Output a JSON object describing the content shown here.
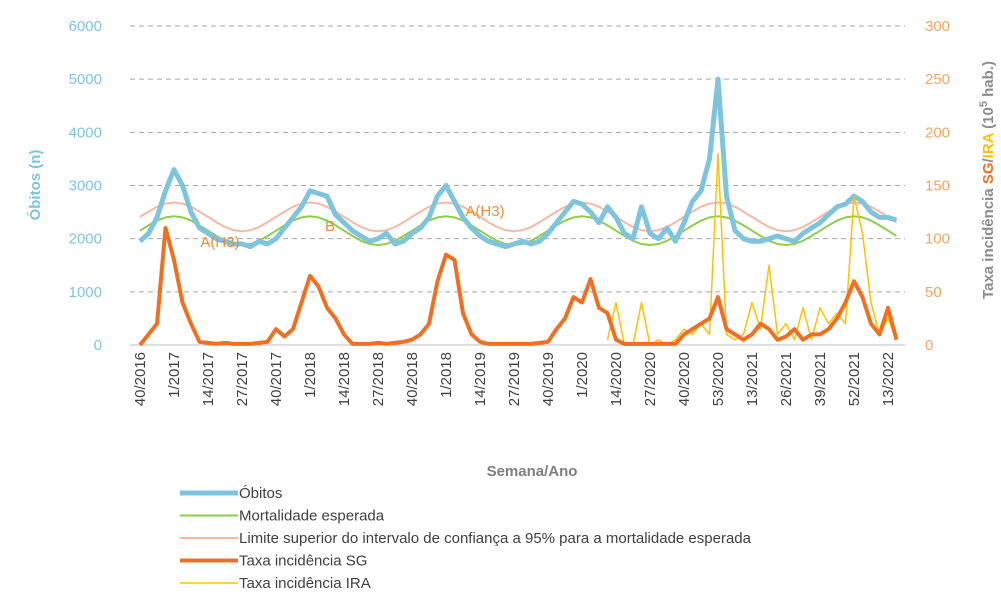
{
  "chart_data": {
    "type": "line",
    "x_label": "Semana/Ano",
    "y_label": "Óbitos (n)",
    "y2_label": [
      "Taxa incidência ",
      "SG",
      "/",
      "IRA",
      " (10",
      "5",
      " hab.)"
    ],
    "annotations": [
      "A(H3)",
      "B",
      "A(H3)"
    ],
    "categories": [
      "40/2016",
      null,
      null,
      null,
      "1/2017",
      null,
      null,
      null,
      "14/2017",
      null,
      null,
      null,
      "27/2017",
      null,
      null,
      null,
      "40/2017",
      null,
      null,
      null,
      "1/2018",
      null,
      null,
      null,
      "14/2018",
      null,
      null,
      null,
      "27/2018",
      null,
      null,
      null,
      "40/2018",
      null,
      null,
      null,
      "1/2018",
      null,
      null,
      null,
      "14/2019",
      null,
      null,
      null,
      "27/2019",
      null,
      null,
      null,
      "40/2019",
      null,
      null,
      null,
      "1/2020",
      null,
      null,
      null,
      "14/2020",
      null,
      null,
      null,
      "27/2020",
      null,
      null,
      null,
      "40/2020",
      null,
      null,
      null,
      "53/2020",
      null,
      null,
      null,
      "13/2021",
      null,
      null,
      null,
      "26/2021",
      null,
      null,
      null,
      "39/2021",
      null,
      null,
      null,
      "52/2021",
      null,
      null,
      null,
      "13/2022",
      null
    ],
    "ylim": [
      0,
      6000
    ],
    "yticks": [
      0,
      1000,
      2000,
      3000,
      4000,
      5000,
      6000
    ],
    "y2lim": [
      0,
      300
    ],
    "y2ticks": [
      0,
      50,
      100,
      150,
      200,
      250,
      300
    ],
    "grid": true,
    "series": [
      {
        "name": "Óbitos",
        "color": "#7fc4dd",
        "values": [
          1950,
          2100,
          2400,
          2900,
          3300,
          3000,
          2500,
          2200,
          2100,
          2000,
          1950,
          1900,
          1900,
          1850,
          1950,
          1900,
          2000,
          2200,
          2400,
          2600,
          2900,
          2850,
          2800,
          2450,
          2300,
          2150,
          2050,
          1950,
          2000,
          2100,
          1900,
          1950,
          2100,
          2200,
          2400,
          2800,
          3000,
          2700,
          2400,
          2200,
          2050,
          1950,
          1900,
          1850,
          1900,
          1950,
          1900,
          1950,
          2100,
          2300,
          2500,
          2700,
          2650,
          2500,
          2300,
          2600,
          2400,
          2100,
          2000,
          2600,
          2100,
          2000,
          2200,
          1950,
          2300,
          2700,
          2900,
          3500,
          5000,
          2800,
          2150,
          2000,
          1950,
          1950,
          2000,
          2050,
          2000,
          1950,
          2100,
          2200,
          2300,
          2450,
          2600,
          2650,
          2800,
          2700,
          2500,
          2400,
          2400,
          2350
        ]
      },
      {
        "name": "Mortalidade esperada",
        "color": "#8fce4b",
        "values": [
          2150,
          2250,
          2340,
          2400,
          2420,
          2400,
          2340,
          2250,
          2150,
          2050,
          1960,
          1900,
          1880,
          1900,
          1960,
          2050,
          2150,
          2250,
          2340,
          2400,
          2420,
          2400,
          2340,
          2250,
          2150,
          2050,
          1960,
          1900,
          1880,
          1900,
          1960,
          2050,
          2150,
          2250,
          2340,
          2400,
          2420,
          2400,
          2340,
          2250,
          2150,
          2050,
          1960,
          1900,
          1880,
          1900,
          1960,
          2050,
          2150,
          2250,
          2340,
          2400,
          2420,
          2400,
          2340,
          2250,
          2150,
          2050,
          1960,
          1900,
          1880,
          1900,
          1960,
          2050,
          2150,
          2250,
          2340,
          2400,
          2420,
          2400,
          2340,
          2250,
          2150,
          2050,
          1960,
          1900,
          1880,
          1900,
          1960,
          2050,
          2150,
          2250,
          2340,
          2400,
          2420,
          2400,
          2340,
          2250,
          2150,
          2050
        ]
      },
      {
        "name": "Limite superior do intervalo de confiança a 95% para a mortalidade esperada",
        "color": "#f4b9a7",
        "values": [
          2410,
          2510,
          2600,
          2660,
          2680,
          2660,
          2600,
          2510,
          2410,
          2310,
          2220,
          2160,
          2140,
          2160,
          2220,
          2310,
          2410,
          2510,
          2600,
          2660,
          2680,
          2660,
          2600,
          2510,
          2410,
          2310,
          2220,
          2160,
          2140,
          2160,
          2220,
          2310,
          2410,
          2510,
          2600,
          2660,
          2680,
          2660,
          2600,
          2510,
          2410,
          2310,
          2220,
          2160,
          2140,
          2160,
          2220,
          2310,
          2410,
          2510,
          2600,
          2660,
          2680,
          2660,
          2600,
          2510,
          2410,
          2310,
          2220,
          2160,
          2140,
          2160,
          2220,
          2310,
          2410,
          2510,
          2600,
          2660,
          2680,
          2660,
          2600,
          2510,
          2410,
          2310,
          2220,
          2160,
          2140,
          2160,
          2220,
          2310,
          2410,
          2510,
          2600,
          2660,
          2680,
          2660,
          2600,
          2510,
          2410,
          2310
        ]
      },
      {
        "name": "Taxa incidência SG",
        "color": "#f07022",
        "axis": "y2",
        "values": [
          0,
          10,
          20,
          110,
          80,
          40,
          20,
          3,
          2,
          1,
          2,
          1,
          1,
          1,
          2,
          3,
          15,
          8,
          15,
          40,
          65,
          55,
          35,
          25,
          10,
          1,
          1,
          1,
          2,
          1,
          2,
          3,
          5,
          10,
          20,
          60,
          85,
          80,
          30,
          10,
          3,
          1,
          1,
          1,
          1,
          1,
          1,
          2,
          3,
          15,
          25,
          45,
          40,
          62,
          35,
          30,
          5,
          1,
          1,
          1,
          1,
          1,
          1,
          1,
          10,
          15,
          20,
          25,
          45,
          15,
          10,
          5,
          10,
          20,
          15,
          5,
          8,
          15,
          5,
          10,
          10,
          15,
          25,
          40,
          60,
          45,
          20,
          10,
          35,
          5
        ]
      },
      {
        "name": "Taxa incidência IRA",
        "color": "#ffc000",
        "axis": "y2",
        "values": [
          null,
          null,
          null,
          null,
          null,
          null,
          null,
          null,
          null,
          null,
          null,
          null,
          null,
          null,
          null,
          null,
          null,
          null,
          null,
          null,
          null,
          null,
          null,
          null,
          null,
          null,
          null,
          null,
          null,
          null,
          null,
          null,
          null,
          null,
          null,
          null,
          null,
          null,
          null,
          null,
          null,
          null,
          null,
          null,
          null,
          null,
          null,
          null,
          null,
          null,
          null,
          null,
          null,
          null,
          null,
          5,
          40,
          0,
          0,
          40,
          0,
          5,
          0,
          5,
          15,
          10,
          20,
          10,
          180,
          10,
          5,
          10,
          40,
          15,
          75,
          10,
          20,
          5,
          35,
          5,
          35,
          20,
          30,
          20,
          140,
          105,
          40,
          10,
          25,
          5
        ]
      }
    ]
  }
}
